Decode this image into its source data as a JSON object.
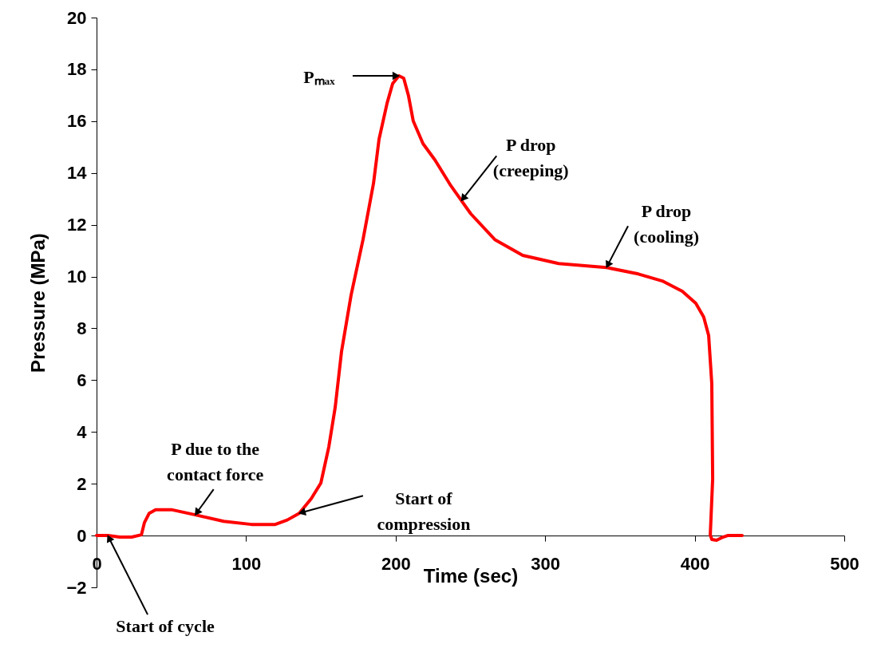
{
  "chart_data": {
    "type": "line",
    "xlabel": "Time (sec)",
    "ylabel": "Pressure (MPa)",
    "x": [
      0,
      7.5,
      15.5,
      23.5,
      30,
      32,
      35.2,
      39.5,
      50,
      66,
      85,
      103.5,
      119.5,
      127.5,
      135.5,
      143.5,
      150,
      155.3,
      159.6,
      163.8,
      170.2,
      178.2,
      185.2,
      188.9,
      194.3,
      198,
      202.2,
      205.4,
      208.6,
      211.8,
      218.3,
      226.3,
      237,
      244,
      250.3,
      266.3,
      285,
      309,
      341,
      362.3,
      378.3,
      391.7,
      400.7,
      406,
      409.3,
      411.4,
      412,
      410.4,
      411.4,
      414.6,
      418.9,
      422,
      431.7
    ],
    "series": [
      {
        "color": "#ff0000",
        "values": [
          0,
          0,
          -0.06,
          -0.06,
          0.03,
          0.5,
          0.86,
          1.0,
          1.0,
          0.8,
          0.55,
          0.43,
          0.43,
          0.6,
          0.86,
          1.42,
          2.03,
          3.42,
          4.96,
          7.1,
          9.28,
          11.43,
          13.6,
          15.3,
          16.7,
          17.45,
          17.75,
          17.66,
          16.98,
          16.0,
          15.13,
          14.5,
          13.5,
          12.93,
          12.42,
          11.43,
          10.82,
          10.5,
          10.35,
          10.1,
          9.83,
          9.43,
          8.97,
          8.44,
          7.73,
          5.88,
          2.19,
          0.03,
          -0.15,
          -0.18,
          -0.06,
          0,
          0
        ]
      }
    ],
    "xlim": [
      0,
      500
    ],
    "ylim": [
      -2,
      20
    ],
    "xticks": [
      0,
      100,
      200,
      300,
      400,
      500
    ],
    "yticks": [
      -2,
      0,
      2,
      4,
      6,
      8,
      10,
      12,
      14,
      16,
      18,
      20
    ],
    "annotations": [
      {
        "text": "Pₘₐₓ",
        "x": 202.2,
        "y": 17.75
      },
      {
        "text": "P drop\n(creeping)",
        "x": 244,
        "y": 12.93
      },
      {
        "text": "P drop\n(cooling)",
        "x": 341,
        "y": 10.35
      },
      {
        "text": "P due to the\ncontact force",
        "x": 66,
        "y": 0.8
      },
      {
        "text": "Start of\ncompression",
        "x": 135.5,
        "y": 0.86
      },
      {
        "text": "Start of cycle",
        "x": 7.5,
        "y": 0
      }
    ]
  }
}
